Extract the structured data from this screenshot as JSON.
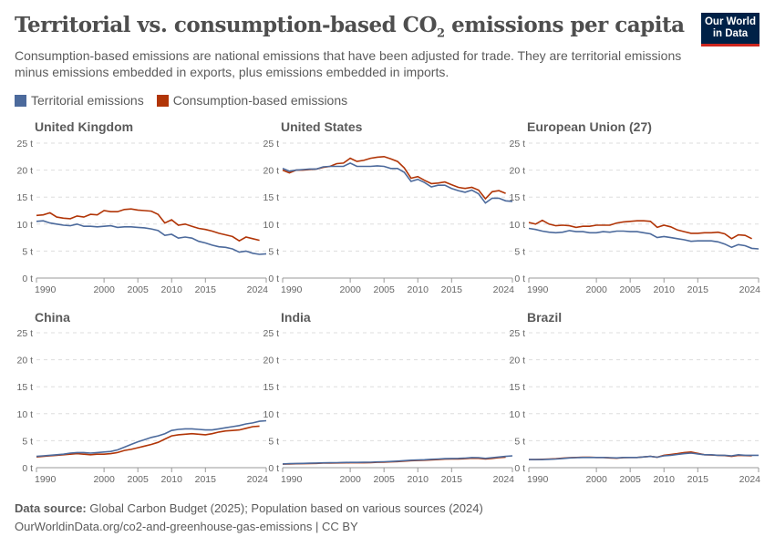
{
  "title": "Territorial vs. consumption-based CO",
  "title_sub": "2",
  "title_end": " emissions per capita",
  "subtitle": "Consumption-based emissions are national emissions that have been adjusted for trade. They are territorial emissions minus emissions embedded in exports, plus emissions embedded in imports.",
  "logo": {
    "line1": "Our World",
    "line2": "in Data"
  },
  "legend": [
    {
      "label": "Territorial emissions",
      "color": "#4c6a9c"
    },
    {
      "label": "Consumption-based emissions",
      "color": "#b13507"
    }
  ],
  "footer": {
    "source_label": "Data source:",
    "source": " Global Carbon Budget (2025); Population based on various sources (2024)",
    "url": "OurWorldinData.org/co2-and-greenhouse-gas-emissions | CC BY"
  },
  "chart_data": {
    "type": "line",
    "x_start": 1990,
    "ylim": [
      0,
      25
    ],
    "yticks": [
      "0 t",
      "5 t",
      "10 t",
      "15 t",
      "20 t",
      "25 t"
    ],
    "yvalues": [
      0,
      5,
      10,
      15,
      20,
      25
    ],
    "xticks": [
      1990,
      2000,
      2005,
      2010,
      2015,
      2024
    ],
    "grid": true,
    "legend_placement": "top-left",
    "panels": [
      {
        "name": "United Kingdom",
        "series": [
          {
            "name": "Territorial emissions",
            "values": [
              10.5,
              10.6,
              10.2,
              10.0,
              9.8,
              9.7,
              10.0,
              9.6,
              9.6,
              9.5,
              9.6,
              9.7,
              9.4,
              9.5,
              9.5,
              9.4,
              9.3,
              9.1,
              8.8,
              7.9,
              8.1,
              7.4,
              7.6,
              7.4,
              6.8,
              6.5,
              6.1,
              5.8,
              5.7,
              5.4,
              4.8,
              5.0,
              4.6,
              4.4,
              4.5
            ]
          },
          {
            "name": "Consumption-based emissions",
            "values": [
              11.6,
              11.7,
              12.1,
              11.3,
              11.1,
              11.0,
              11.5,
              11.3,
              11.8,
              11.7,
              12.5,
              12.3,
              12.3,
              12.7,
              12.8,
              12.6,
              12.5,
              12.4,
              11.8,
              10.2,
              10.8,
              9.8,
              10.0,
              9.6,
              9.2,
              9.0,
              8.7,
              8.3,
              8.0,
              7.7,
              6.9,
              7.6,
              7.3,
              7.0
            ]
          }
        ]
      },
      {
        "name": "United States",
        "series": [
          {
            "name": "Territorial emissions",
            "values": [
              20.3,
              19.8,
              20.0,
              20.1,
              20.2,
              20.2,
              20.6,
              20.7,
              20.7,
              20.7,
              21.3,
              20.7,
              20.7,
              20.7,
              20.8,
              20.7,
              20.3,
              20.3,
              19.6,
              17.9,
              18.3,
              17.7,
              16.9,
              17.2,
              17.2,
              16.6,
              16.2,
              15.9,
              16.3,
              15.6,
              13.9,
              14.8,
              14.8,
              14.3,
              14.2
            ]
          },
          {
            "name": "Consumption-based emissions",
            "values": [
              20.0,
              19.5,
              20.0,
              20.0,
              20.1,
              20.2,
              20.5,
              20.7,
              21.2,
              21.3,
              22.2,
              21.6,
              21.8,
              22.2,
              22.4,
              22.5,
              22.1,
              21.6,
              20.4,
              18.5,
              18.8,
              18.1,
              17.5,
              17.6,
              17.8,
              17.3,
              16.8,
              16.6,
              16.8,
              16.3,
              14.7,
              16.0,
              16.2,
              15.7
            ]
          }
        ]
      },
      {
        "name": "European Union (27)",
        "series": [
          {
            "name": "Territorial emissions",
            "values": [
              9.2,
              9.0,
              8.7,
              8.5,
              8.4,
              8.5,
              8.8,
              8.6,
              8.6,
              8.4,
              8.4,
              8.6,
              8.5,
              8.7,
              8.7,
              8.6,
              8.6,
              8.4,
              8.2,
              7.5,
              7.7,
              7.5,
              7.3,
              7.1,
              6.8,
              6.9,
              6.9,
              6.9,
              6.7,
              6.3,
              5.7,
              6.2,
              6.0,
              5.5,
              5.4
            ]
          },
          {
            "name": "Consumption-based emissions",
            "values": [
              10.3,
              10.0,
              10.7,
              10.0,
              9.7,
              9.8,
              9.7,
              9.4,
              9.6,
              9.6,
              9.8,
              9.8,
              9.8,
              10.2,
              10.4,
              10.5,
              10.6,
              10.6,
              10.5,
              9.4,
              9.8,
              9.5,
              8.9,
              8.6,
              8.3,
              8.3,
              8.4,
              8.4,
              8.5,
              8.2,
              7.3,
              8.0,
              7.9,
              7.3
            ]
          }
        ]
      },
      {
        "name": "China",
        "series": [
          {
            "name": "Territorial emissions",
            "values": [
              2.1,
              2.2,
              2.3,
              2.4,
              2.5,
              2.7,
              2.8,
              2.8,
              2.7,
              2.8,
              2.9,
              3.0,
              3.3,
              3.8,
              4.3,
              4.8,
              5.2,
              5.6,
              5.9,
              6.3,
              6.9,
              7.1,
              7.2,
              7.2,
              7.1,
              7.0,
              7.0,
              7.2,
              7.4,
              7.6,
              7.8,
              8.1,
              8.3,
              8.6,
              8.7
            ]
          },
          {
            "name": "Consumption-based emissions",
            "values": [
              2.0,
              2.1,
              2.2,
              2.3,
              2.4,
              2.5,
              2.6,
              2.5,
              2.4,
              2.5,
              2.5,
              2.6,
              2.8,
              3.2,
              3.4,
              3.7,
              4.0,
              4.3,
              4.7,
              5.3,
              5.9,
              6.1,
              6.2,
              6.3,
              6.2,
              6.1,
              6.3,
              6.6,
              6.8,
              6.9,
              7.0,
              7.3,
              7.6,
              7.7
            ]
          }
        ]
      },
      {
        "name": "India",
        "series": [
          {
            "name": "Territorial emissions",
            "values": [
              0.7,
              0.75,
              0.78,
              0.8,
              0.82,
              0.86,
              0.9,
              0.92,
              0.93,
              0.97,
              0.98,
              0.98,
              0.99,
              1.02,
              1.06,
              1.1,
              1.15,
              1.22,
              1.3,
              1.38,
              1.42,
              1.47,
              1.55,
              1.6,
              1.68,
              1.7,
              1.72,
              1.78,
              1.88,
              1.86,
              1.72,
              1.85,
              1.98,
              2.1,
              2.2
            ]
          },
          {
            "name": "Consumption-based emissions",
            "values": [
              0.66,
              0.7,
              0.72,
              0.74,
              0.76,
              0.8,
              0.84,
              0.86,
              0.87,
              0.9,
              0.91,
              0.91,
              0.92,
              0.95,
              0.99,
              1.03,
              1.08,
              1.14,
              1.22,
              1.3,
              1.33,
              1.38,
              1.45,
              1.5,
              1.58,
              1.6,
              1.62,
              1.67,
              1.76,
              1.74,
              1.61,
              1.73,
              1.85,
              1.95
            ]
          }
        ]
      },
      {
        "name": "Brazil",
        "series": [
          {
            "name": "Territorial emissions",
            "values": [
              1.5,
              1.5,
              1.5,
              1.55,
              1.6,
              1.7,
              1.8,
              1.85,
              1.9,
              1.9,
              1.9,
              1.9,
              1.85,
              1.8,
              1.9,
              1.9,
              1.9,
              2.0,
              2.1,
              1.95,
              2.2,
              2.3,
              2.45,
              2.6,
              2.7,
              2.55,
              2.4,
              2.4,
              2.3,
              2.3,
              2.2,
              2.4,
              2.3,
              2.3,
              2.3
            ]
          },
          {
            "name": "Consumption-based emissions",
            "values": [
              1.5,
              1.5,
              1.55,
              1.6,
              1.65,
              1.75,
              1.85,
              1.9,
              1.95,
              1.95,
              1.9,
              1.9,
              1.8,
              1.75,
              1.85,
              1.9,
              1.9,
              2.0,
              2.1,
              1.95,
              2.3,
              2.45,
              2.6,
              2.8,
              2.9,
              2.65,
              2.4,
              2.35,
              2.3,
              2.25,
              2.1,
              2.3,
              2.25,
              2.2
            ]
          }
        ]
      }
    ]
  }
}
